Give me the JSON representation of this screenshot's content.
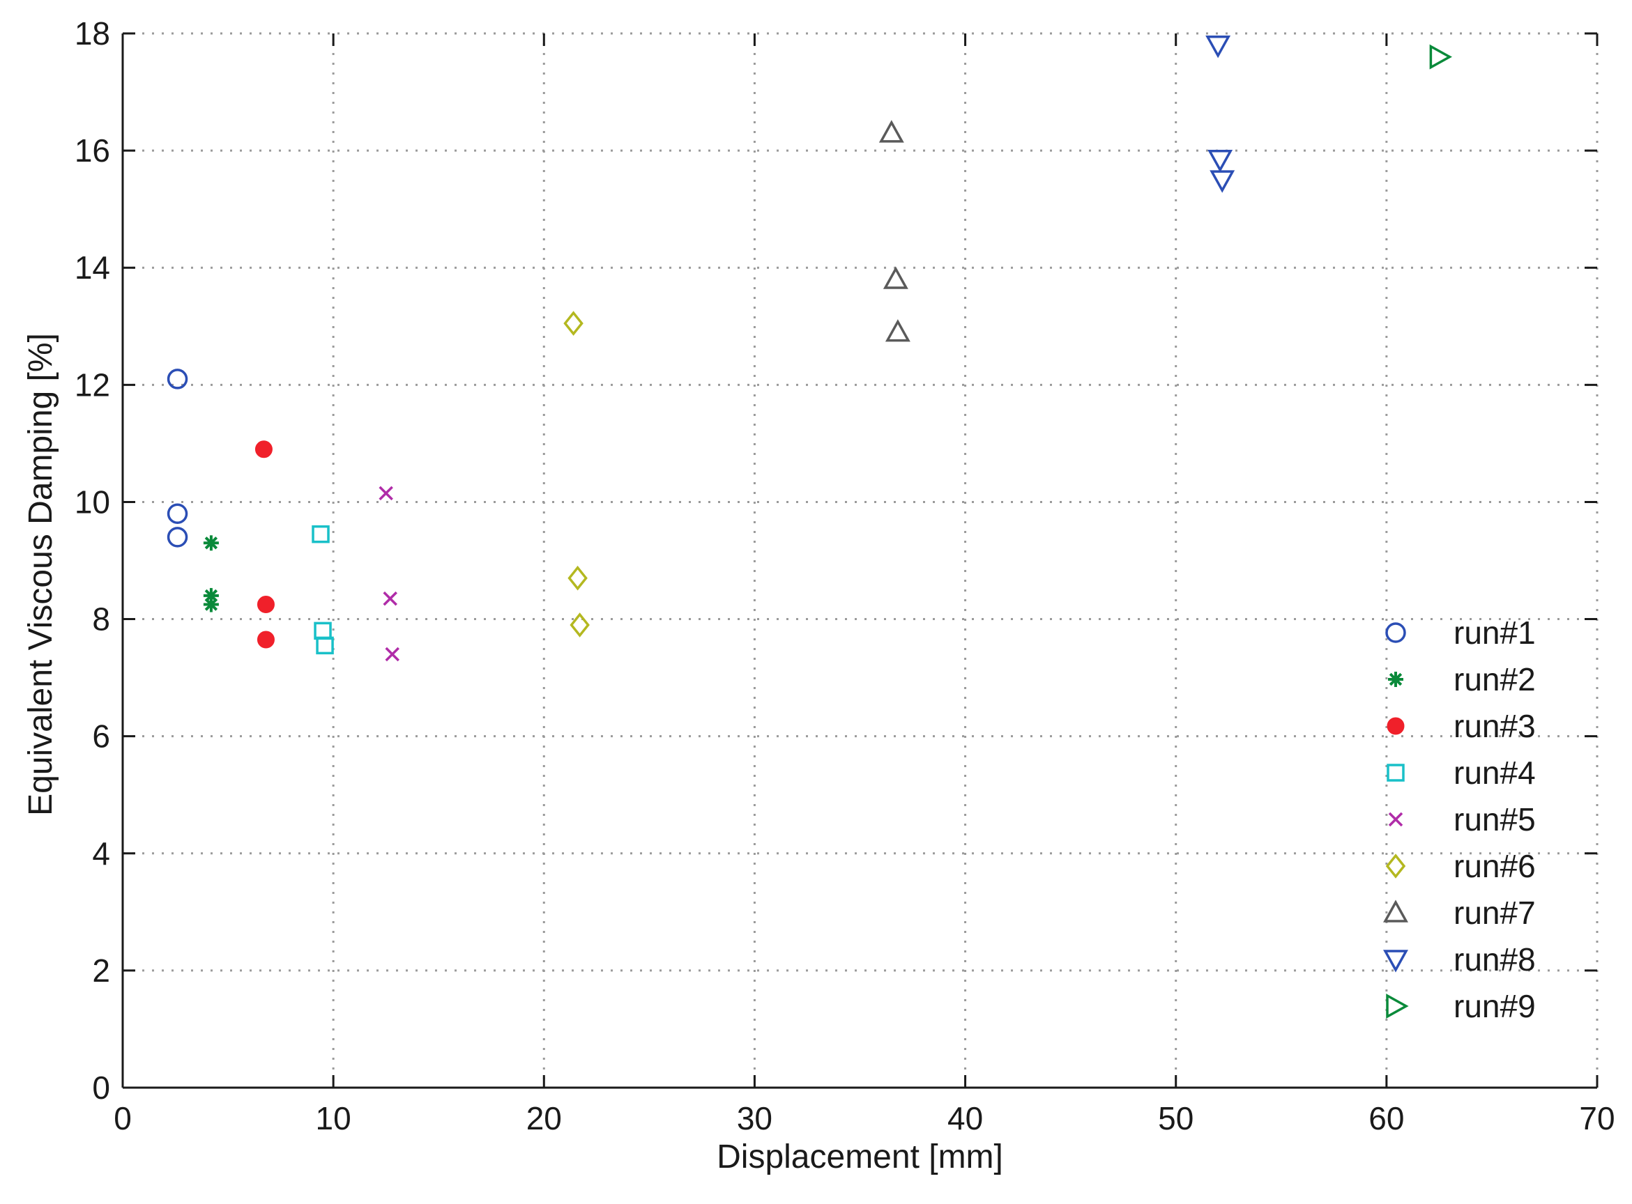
{
  "chart_data": {
    "type": "scatter",
    "title": "",
    "xlabel": "Displacement [mm]",
    "ylabel": "Equivalent Viscous Damping [%]",
    "xlim": [
      0,
      70
    ],
    "ylim": [
      0,
      18
    ],
    "xticks": [
      0,
      10,
      20,
      30,
      40,
      50,
      60,
      70
    ],
    "yticks": [
      0,
      2,
      4,
      6,
      8,
      10,
      12,
      14,
      16,
      18
    ],
    "grid": true,
    "legend_position": "bottom-right",
    "series": [
      {
        "name": "run#1",
        "marker": "circle",
        "color": "#2b4eb5",
        "points": [
          [
            2.6,
            12.1
          ],
          [
            2.6,
            9.8
          ],
          [
            2.6,
            9.4
          ]
        ]
      },
      {
        "name": "run#2",
        "marker": "asterisk",
        "color": "#0a8a3a",
        "points": [
          [
            4.2,
            9.3
          ],
          [
            4.2,
            8.4
          ],
          [
            4.2,
            8.25
          ]
        ]
      },
      {
        "name": "run#3",
        "marker": "filled-circle",
        "color": "#f0202a",
        "points": [
          [
            6.7,
            10.9
          ],
          [
            6.8,
            8.25
          ],
          [
            6.8,
            7.65
          ]
        ]
      },
      {
        "name": "run#4",
        "marker": "square",
        "color": "#19c0c8",
        "points": [
          [
            9.4,
            9.45
          ],
          [
            9.5,
            7.8
          ],
          [
            9.6,
            7.55
          ]
        ]
      },
      {
        "name": "run#5",
        "marker": "x",
        "color": "#b02ca8",
        "points": [
          [
            12.5,
            10.15
          ],
          [
            12.7,
            8.35
          ],
          [
            12.8,
            7.4
          ]
        ]
      },
      {
        "name": "run#6",
        "marker": "diamond",
        "color": "#b4b820",
        "points": [
          [
            21.4,
            13.05
          ],
          [
            21.6,
            8.7
          ],
          [
            21.7,
            7.9
          ]
        ]
      },
      {
        "name": "run#7",
        "marker": "triangle-up",
        "color": "#5a5a5a",
        "points": [
          [
            36.5,
            16.3
          ],
          [
            36.7,
            13.8
          ],
          [
            36.8,
            12.9
          ]
        ]
      },
      {
        "name": "run#8",
        "marker": "triangle-down",
        "color": "#2b4eb5",
        "points": [
          [
            52.0,
            17.8
          ],
          [
            52.1,
            15.85
          ],
          [
            52.2,
            15.5
          ]
        ]
      },
      {
        "name": "run#9",
        "marker": "triangle-right",
        "color": "#0a8a3a",
        "points": [
          [
            62.5,
            17.6
          ]
        ]
      }
    ]
  }
}
